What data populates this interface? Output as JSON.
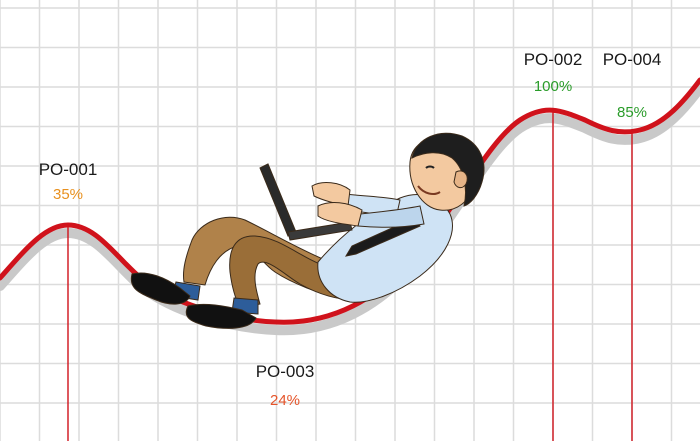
{
  "chart_data": {
    "type": "line",
    "title": "",
    "xlabel": "",
    "ylabel": "",
    "grid": true,
    "colors": {
      "line": "#d0121b",
      "line_shadow": "#c9c9c9",
      "grid": "#dcdcdc",
      "drop_line": "#d0121b"
    },
    "points": [
      {
        "id": "PO-001",
        "label": "PO-001",
        "value_text": "35%",
        "value": 35,
        "color": "#e8901e"
      },
      {
        "id": "PO-003",
        "label": "PO-003",
        "value_text": "24%",
        "value": 24,
        "color": "#e5542a"
      },
      {
        "id": "PO-002",
        "label": "PO-002",
        "value_text": "100%",
        "value": 100,
        "color": "#2a9c2a"
      },
      {
        "id": "PO-004",
        "label": "PO-004",
        "value_text": "85%",
        "value": 85,
        "color": "#2a9c2a"
      }
    ]
  },
  "illustration": {
    "subject": "man-reclining-with-laptop-icon",
    "colors": {
      "shirt": "#cfe3f5",
      "pants": "#b0824a",
      "hair": "#1e1e1e",
      "skin": "#f3c9a0",
      "laptop": "#2a2a2a",
      "shoes": "#111111"
    }
  }
}
